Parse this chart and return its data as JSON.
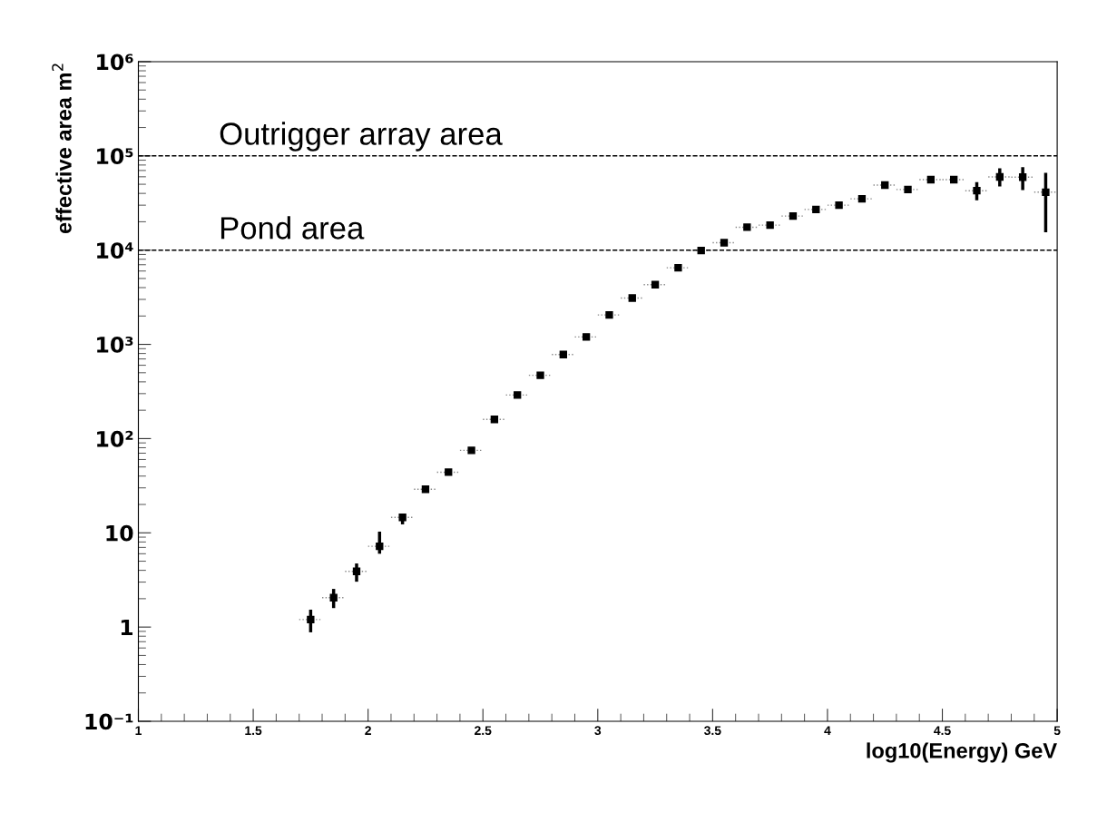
{
  "chart_data": {
    "type": "scatter",
    "xlabel": "log10(Energy) GeV",
    "ylabel": "effective area m$^{2}$",
    "x": [
      1.75,
      1.85,
      1.95,
      2.05,
      2.15,
      2.25,
      2.35,
      2.45,
      2.55,
      2.65,
      2.75,
      2.85,
      2.95,
      3.05,
      3.15,
      3.25,
      3.35,
      3.45,
      3.55,
      3.65,
      3.75,
      3.85,
      3.95,
      4.05,
      4.15,
      4.25,
      4.35,
      4.45,
      4.55,
      4.65,
      4.75,
      4.85,
      4.95
    ],
    "values": [
      1.2,
      2.05,
      3.9,
      7.2,
      14.6,
      29,
      44,
      75,
      160,
      290,
      470,
      780,
      1200,
      2050,
      3100,
      4300,
      6500,
      9900,
      12000,
      17500,
      18400,
      23000,
      27000,
      30000,
      35000,
      49000,
      44000,
      56000,
      56000,
      42700,
      59800,
      59500,
      41200
    ],
    "errors": [
      [
        0.88,
        1.53
      ],
      [
        1.59,
        2.54
      ],
      [
        3.03,
        4.73
      ],
      [
        6,
        10.3
      ],
      [
        12.3,
        14.6
      ],
      [
        27.4,
        31.4
      ],
      null,
      null,
      null,
      null,
      null,
      null,
      null,
      null,
      null,
      null,
      null,
      null,
      null,
      null,
      null,
      null,
      null,
      null,
      null,
      null,
      null,
      null,
      null,
      [
        33800,
        52800
      ],
      [
        47400,
        74000
      ],
      [
        43300,
        76000
      ],
      [
        15500,
        66000
      ]
    ],
    "xerrors": [
      0.05,
      0.05,
      0.05,
      0.05,
      0.05,
      0.05,
      0.05,
      0.05,
      0.05,
      0.05,
      0.05,
      0.05,
      0.05,
      0.05,
      0.05,
      0.05,
      0.05,
      0.05,
      0.05,
      0.05,
      0.05,
      0.05,
      0.05,
      0.05,
      0.05,
      0.05,
      0.05,
      0.05,
      0.05,
      0.05,
      0.05,
      0.05,
      0.05
    ],
    "color": "#000000",
    "marker": "square",
    "log": "y",
    "xlim": [
      1,
      5
    ],
    "xticks": [
      1,
      1.5,
      2,
      2.5,
      3,
      3.5,
      4,
      4.5,
      5
    ],
    "ylim": [
      0.1,
      1000000
    ],
    "yticks": [
      {
        "value": 0.1,
        "label": "10⁻¹"
      },
      1,
      10,
      {
        "value": 100,
        "label": "10²"
      },
      {
        "value": 1000,
        "label": "10³"
      },
      {
        "value": 10000,
        "label": "10⁴"
      },
      {
        "value": 100000,
        "label": "10⁵"
      },
      {
        "value": 1000000,
        "label": "10⁶"
      }
    ],
    "ref_lines": [
      {
        "axis": "y",
        "value": 100000,
        "label": "Outrigger array area",
        "line_style": "dashed",
        "color": "#000000"
      },
      {
        "axis": "y",
        "value": 10000,
        "label": "Pond area",
        "line_style": "dashed",
        "color": "#000000"
      }
    ],
    "grid": false,
    "legend": false
  }
}
